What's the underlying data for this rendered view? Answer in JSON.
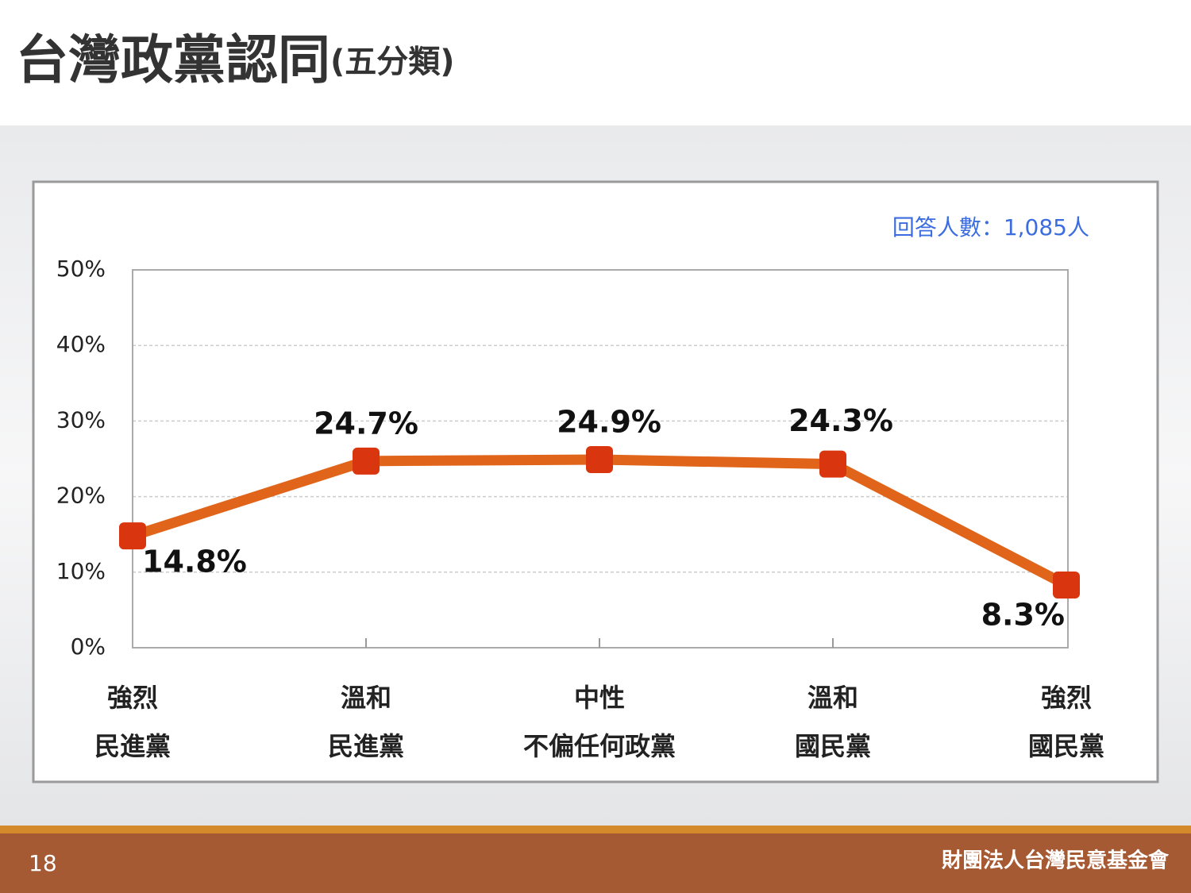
{
  "slide": {
    "page_number": "18",
    "organization": "財團法人台灣民意基金會"
  },
  "chart_data": {
    "type": "line",
    "title": "台灣政黨認同",
    "subtitle": "(五分類)",
    "annotation": "回答人數：1,085人",
    "categories": [
      [
        "強烈",
        "民進黨"
      ],
      [
        "溫和",
        "民進黨"
      ],
      [
        "中性",
        "不偏任何政黨"
      ],
      [
        "溫和",
        "國民黨"
      ],
      [
        "強烈",
        "國民黨"
      ]
    ],
    "values": [
      14.8,
      24.7,
      24.9,
      24.3,
      8.3
    ],
    "value_labels": [
      "14.8%",
      "24.7%",
      "24.9%",
      "24.3%",
      "8.3%"
    ],
    "color": "#e0651a",
    "marker_color": "#d9360f",
    "ylim": [
      0,
      50
    ],
    "yticks": [
      {
        "value": 0,
        "label": "0%"
      },
      {
        "value": 10,
        "label": "10%"
      },
      {
        "value": 20,
        "label": "20%"
      },
      {
        "value": 30,
        "label": "30%"
      },
      {
        "value": 40,
        "label": "40%"
      },
      {
        "value": 50,
        "label": "50%"
      }
    ],
    "grid": true
  }
}
